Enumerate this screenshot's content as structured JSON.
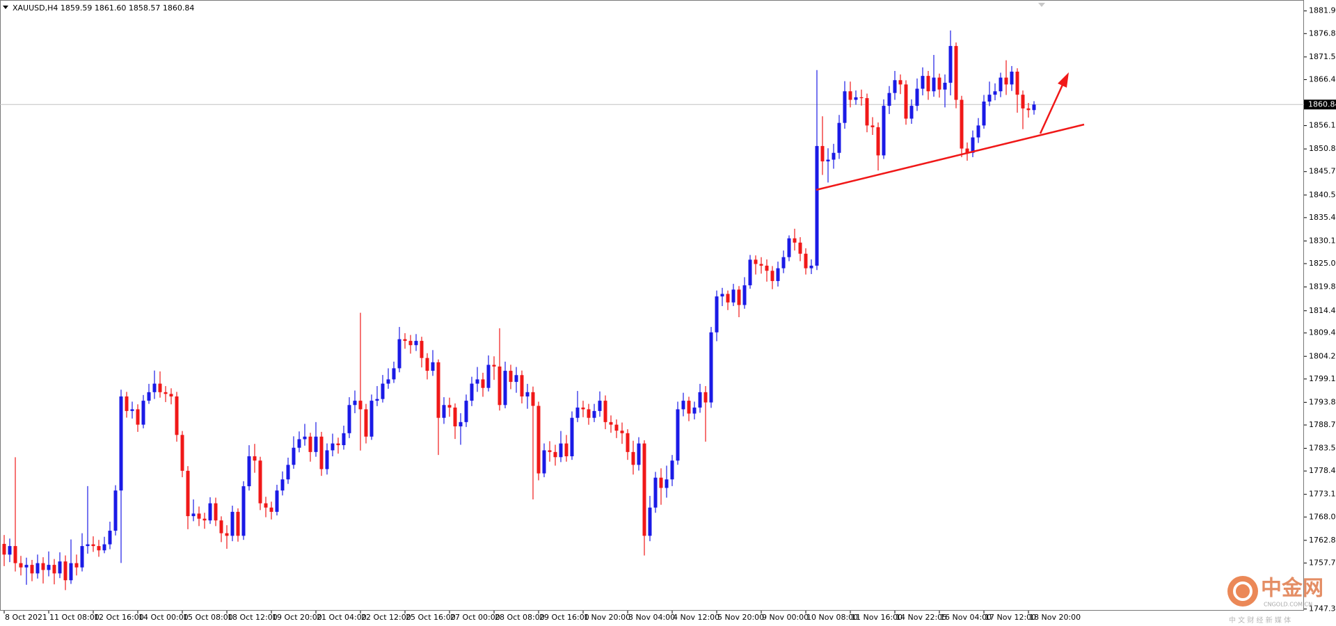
{
  "chart_data": {
    "type": "candlestick",
    "title": "XAUUSD,H4  1859.59 1861.60 1858.57 1860.84",
    "categories": [
      "8 Oct 2021",
      null,
      null,
      null,
      null,
      null,
      null,
      null,
      "11 Oct 08:00",
      null,
      null,
      null,
      null,
      null,
      null,
      null,
      "12 Oct 16:00",
      null,
      null,
      null,
      null,
      null,
      null,
      null,
      "14 Oct 00:00",
      null,
      null,
      null,
      null,
      null,
      null,
      null,
      "15 Oct 08:00",
      null,
      null,
      null,
      null,
      null,
      null,
      null,
      "18 Oct 12:00",
      null,
      null,
      null,
      null,
      null,
      null,
      null,
      "19 Oct 20:00",
      null,
      null,
      null,
      null,
      null,
      null,
      null,
      "21 Oct 04:00",
      null,
      null,
      null,
      null,
      null,
      null,
      null,
      "22 Oct 12:00",
      null,
      null,
      null,
      null,
      null,
      null,
      null,
      "25 Oct 16:00",
      null,
      null,
      null,
      null,
      null,
      null,
      null,
      "27 Oct 00:00",
      null,
      null,
      null,
      null,
      null,
      null,
      null,
      "28 Oct 08:00",
      null,
      null,
      null,
      null,
      null,
      null,
      null,
      "29 Oct 16:00",
      null,
      null,
      null,
      null,
      null,
      null,
      null,
      "1 Nov 20:00",
      null,
      null,
      null,
      null,
      null,
      null,
      null,
      "3 Nov 04:00",
      null,
      null,
      null,
      null,
      null,
      null,
      null,
      "4 Nov 12:00",
      null,
      null,
      null,
      null,
      null,
      null,
      null,
      "5 Nov 20:00",
      null,
      null,
      null,
      null,
      null,
      null,
      null,
      "9 Nov 00:00",
      null,
      null,
      null,
      null,
      null,
      null,
      null,
      "10 Nov 08:00",
      null,
      null,
      null,
      null,
      null,
      null,
      null,
      "11 Nov 16:00",
      null,
      null,
      null,
      null,
      null,
      null,
      null,
      "14 Nov 22:05",
      null,
      null,
      null,
      null,
      null,
      null,
      null,
      "16 Nov 04:00",
      null,
      null,
      null,
      null,
      null,
      null,
      null,
      "17 Nov 12:00",
      null,
      null,
      null,
      null,
      null,
      null,
      null,
      "18 Nov 20:00",
      null
    ],
    "open": [
      1762.0,
      1759.59,
      1761.51,
      1757.67,
      1756.71,
      1757.28,
      1755.36,
      1757.67,
      1756.13,
      1757.28,
      1755.36,
      1758.05,
      1753.82,
      1757.67,
      1756.71,
      1761.51,
      1761.9,
      1761.51,
      1760.55,
      1761.9,
      1764.97,
      1774.01,
      1795.17,
      1791.9,
      1792.28,
      1788.82,
      1794.21,
      1796.13,
      1798.05,
      1796.13,
      1795.74,
      1795.17,
      1786.51,
      1778.44,
      1768.24,
      1768.82,
      1767.67,
      1767.28,
      1771.13,
      1767.28,
      1764.4,
      1763.82,
      1769.21,
      1763.82,
      1774.97,
      1781.71,
      1780.74,
      1771.13,
      1770.17,
      1769.21,
      1774.01,
      1776.51,
      1779.78,
      1783.63,
      1785.55,
      1786.13,
      1782.67,
      1786.13,
      1778.82,
      1783.05,
      1784.59,
      1784.21,
      1786.9,
      1793.24,
      1794.21,
      1792.28,
      1786.13,
      1794.21,
      1794.59,
      1798.05,
      1799.01,
      1801.51,
      1808.05,
      1807.67,
      1806.71,
      1807.67,
      1803.82,
      1800.94,
      1802.86,
      1790.36,
      1793.24,
      1792.67,
      1788.44,
      1789.4,
      1794.21,
      1798.05,
      1799.01,
      1797.09,
      1802.28,
      1801.9,
      1793.24,
      1800.94,
      1798.44,
      1799.97,
      1795.17,
      1796.13,
      1793.05,
      1777.86,
      1783.05,
      1782.67,
      1781.51,
      1784.59,
      1781.71,
      1790.36,
      1792.67,
      1792.28,
      1790.36,
      1791.9,
      1794.21,
      1789.4,
      1788.82,
      1787.47,
      1786.9,
      1782.67,
      1779.78,
      1784.59,
      1763.82,
      1770.17,
      1776.9,
      1774.59,
      1776.51,
      1780.74,
      1792.28,
      1794.21,
      1791.32,
      1792.67,
      1796.13,
      1793.82,
      1809.59,
      1817.67,
      1818.24,
      1816.32,
      1819.21,
      1815.74,
      1820.17,
      1825.94,
      1824.97,
      1824.59,
      1823.44,
      1821.13,
      1824.01,
      1826.51,
      1830.74,
      1829.78,
      1827.28,
      1824.01,
      1824.59,
      1851.51,
      1848.05,
      1848.44,
      1849.97,
      1856.71,
      1863.82,
      1861.9,
      1862.47,
      1862.28,
      1856.13,
      1855.74,
      1849.4,
      1860.55,
      1863.44,
      1866.32,
      1865.36,
      1857.67,
      1860.55,
      1864.4,
      1867.28,
      1863.82,
      1866.9,
      1864.21,
      1865.74,
      1874.01,
      1861.9,
      1850.94,
      1849.97,
      1853.44,
      1856.13,
      1861.51,
      1863.05,
      1863.82,
      1866.9,
      1865.36,
      1868.24,
      1863.05,
      1859.97,
      1859.59
    ],
    "high": [
      1764.0,
      1763.2,
      1781.5,
      1759.3,
      1758.9,
      1758.4,
      1759.6,
      1759.0,
      1760.3,
      1758.6,
      1760.1,
      1759.4,
      1763.0,
      1759.6,
      1764.4,
      1775.0,
      1763.7,
      1762.9,
      1763.6,
      1767.0,
      1775.2,
      1796.7,
      1796.2,
      1794.0,
      1793.4,
      1795.5,
      1798.0,
      1801.0,
      1800.8,
      1797.5,
      1797.0,
      1796.2,
      1787.4,
      1779.5,
      1772.0,
      1770.4,
      1769.0,
      1772.5,
      1772.4,
      1768.2,
      1766.2,
      1770.6,
      1770.0,
      1776.1,
      1784.2,
      1784.5,
      1781.6,
      1772.6,
      1771.5,
      1775.3,
      1778.3,
      1781.4,
      1786.2,
      1787.3,
      1789.0,
      1787.0,
      1789.4,
      1787.2,
      1784.6,
      1786.8,
      1785.9,
      1788.6,
      1795.0,
      1796.5,
      1814.0,
      1793.5,
      1795.6,
      1797.5,
      1800.0,
      1801.5,
      1803.0,
      1810.8,
      1809.4,
      1809.0,
      1809.2,
      1808.6,
      1804.9,
      1805.6,
      1803.5,
      1795.0,
      1794.9,
      1793.6,
      1791.4,
      1795.6,
      1799.6,
      1801.8,
      1800.5,
      1804.4,
      1804.2,
      1810.5,
      1803.0,
      1802.3,
      1801.8,
      1801.0,
      1798.0,
      1797.4,
      1794.0,
      1784.6,
      1785.1,
      1784.3,
      1787.4,
      1786.5,
      1791.8,
      1796.4,
      1794.2,
      1793.5,
      1793.5,
      1796.3,
      1795.4,
      1790.9,
      1790.0,
      1789.3,
      1787.8,
      1785.2,
      1786.0,
      1785.3,
      1772.8,
      1778.2,
      1779.0,
      1779.6,
      1782.0,
      1794.0,
      1796.0,
      1795.1,
      1794.0,
      1798.0,
      1797.5,
      1810.8,
      1819.0,
      1819.6,
      1819.0,
      1820.5,
      1820.0,
      1822.0,
      1827.0,
      1826.9,
      1826.5,
      1826.0,
      1824.5,
      1825.5,
      1828.0,
      1831.4,
      1832.9,
      1831.0,
      1828.5,
      1826.0,
      1868.6,
      1858.2,
      1851.0,
      1852.0,
      1858.5,
      1866.1,
      1866.0,
      1864.0,
      1864.2,
      1863.3,
      1858.0,
      1856.8,
      1862.0,
      1865.0,
      1868.4,
      1867.6,
      1866.3,
      1862.0,
      1866.7,
      1869.2,
      1868.4,
      1872.0,
      1867.8,
      1867.6,
      1877.5,
      1874.8,
      1862.8,
      1852.3,
      1855.0,
      1857.8,
      1863.0,
      1866.0,
      1865.6,
      1868.0,
      1870.8,
      1869.5,
      1869.0,
      1864.0,
      1861.2,
      1861.6
    ],
    "low": [
      1757.0,
      1757.9,
      1755.8,
      1754.9,
      1752.8,
      1753.6,
      1754.2,
      1753.1,
      1754.7,
      1752.9,
      1754.3,
      1751.6,
      1753.0,
      1754.9,
      1755.8,
      1759.8,
      1760.2,
      1759.1,
      1759.9,
      1760.8,
      1763.9,
      1757.7,
      1790.4,
      1790.2,
      1787.2,
      1788.0,
      1793.5,
      1794.6,
      1794.9,
      1793.9,
      1793.4,
      1785.0,
      1777.0,
      1765.3,
      1767.1,
      1766.0,
      1765.4,
      1766.5,
      1766.0,
      1762.4,
      1760.9,
      1762.6,
      1762.5,
      1762.9,
      1774.0,
      1778.0,
      1769.6,
      1768.0,
      1767.5,
      1768.4,
      1772.9,
      1775.5,
      1778.9,
      1782.6,
      1784.1,
      1780.5,
      1781.6,
      1777.3,
      1777.6,
      1781.7,
      1782.3,
      1783.2,
      1785.8,
      1791.4,
      1783.0,
      1784.6,
      1785.4,
      1793.0,
      1793.8,
      1796.9,
      1798.2,
      1800.6,
      1805.9,
      1804.8,
      1805.4,
      1801.7,
      1799.0,
      1799.8,
      1782.0,
      1789.0,
      1790.6,
      1785.6,
      1784.3,
      1788.3,
      1793.0,
      1796.2,
      1795.1,
      1796.3,
      1798.9,
      1792.0,
      1792.5,
      1796.8,
      1796.0,
      1793.6,
      1792.4,
      1772.0,
      1776.3,
      1777.0,
      1780.5,
      1779.6,
      1780.4,
      1780.5,
      1780.9,
      1789.4,
      1790.5,
      1788.8,
      1789.4,
      1790.6,
      1787.8,
      1787.0,
      1785.8,
      1784.5,
      1780.9,
      1777.6,
      1778.5,
      1759.4,
      1762.6,
      1769.0,
      1770.8,
      1772.4,
      1775.0,
      1779.8,
      1790.7,
      1789.6,
      1790.0,
      1791.5,
      1785.0,
      1792.6,
      1807.6,
      1815.5,
      1814.6,
      1815.5,
      1813.0,
      1814.9,
      1819.4,
      1822.6,
      1822.8,
      1821.0,
      1819.3,
      1819.9,
      1822.9,
      1825.6,
      1828.0,
      1825.6,
      1822.6,
      1822.7,
      1823.6,
      1845.0,
      1843.3,
      1846.4,
      1848.6,
      1855.4,
      1860.2,
      1860.8,
      1860.6,
      1854.6,
      1854.0,
      1846.0,
      1848.6,
      1858.7,
      1861.9,
      1863.2,
      1856.3,
      1856.5,
      1859.4,
      1862.9,
      1861.9,
      1862.6,
      1862.4,
      1860.2,
      1862.9,
      1860.0,
      1849.0,
      1848.2,
      1849.0,
      1852.2,
      1855.4,
      1860.5,
      1861.8,
      1862.5,
      1863.0,
      1863.9,
      1859.0,
      1855.3,
      1857.9,
      1858.57
    ],
    "close": [
      1759.59,
      1761.51,
      1757.67,
      1756.71,
      1757.28,
      1755.36,
      1757.67,
      1756.13,
      1757.28,
      1755.36,
      1758.05,
      1753.82,
      1757.67,
      1756.71,
      1761.51,
      1761.9,
      1761.51,
      1760.55,
      1761.9,
      1764.97,
      1774.01,
      1795.17,
      1791.9,
      1792.28,
      1788.82,
      1794.21,
      1796.13,
      1798.05,
      1796.13,
      1795.74,
      1795.17,
      1786.51,
      1778.44,
      1768.24,
      1768.82,
      1767.67,
      1767.28,
      1771.13,
      1767.28,
      1764.4,
      1763.82,
      1769.21,
      1763.82,
      1774.97,
      1781.71,
      1780.74,
      1771.13,
      1770.17,
      1769.21,
      1774.01,
      1776.51,
      1779.78,
      1783.63,
      1785.55,
      1786.13,
      1782.67,
      1786.13,
      1778.82,
      1783.05,
      1784.59,
      1784.21,
      1786.9,
      1793.24,
      1794.21,
      1792.28,
      1786.13,
      1794.21,
      1794.59,
      1798.05,
      1799.01,
      1801.51,
      1808.05,
      1807.67,
      1806.71,
      1807.67,
      1803.82,
      1800.94,
      1802.86,
      1790.36,
      1793.24,
      1792.67,
      1788.44,
      1789.4,
      1794.21,
      1798.05,
      1799.01,
      1797.09,
      1802.28,
      1801.9,
      1793.24,
      1800.94,
      1798.44,
      1799.97,
      1795.17,
      1796.13,
      1793.05,
      1777.86,
      1783.05,
      1782.67,
      1781.51,
      1784.59,
      1781.71,
      1790.36,
      1792.67,
      1792.28,
      1790.36,
      1791.9,
      1794.21,
      1789.4,
      1788.82,
      1787.47,
      1786.9,
      1782.67,
      1779.78,
      1784.59,
      1763.82,
      1770.17,
      1776.9,
      1774.59,
      1776.51,
      1780.74,
      1792.28,
      1794.21,
      1791.32,
      1792.67,
      1796.13,
      1793.82,
      1809.59,
      1817.67,
      1818.24,
      1816.32,
      1819.21,
      1815.74,
      1820.17,
      1825.94,
      1824.97,
      1824.59,
      1823.44,
      1821.13,
      1824.01,
      1826.51,
      1830.74,
      1829.78,
      1827.28,
      1824.01,
      1824.59,
      1851.51,
      1848.05,
      1848.44,
      1849.97,
      1856.71,
      1863.82,
      1861.9,
      1862.47,
      1862.28,
      1856.13,
      1855.74,
      1849.4,
      1860.55,
      1863.44,
      1866.32,
      1865.36,
      1857.67,
      1860.55,
      1864.4,
      1867.28,
      1863.82,
      1866.9,
      1864.21,
      1865.74,
      1874.01,
      1861.9,
      1850.94,
      1849.97,
      1853.44,
      1856.13,
      1861.51,
      1863.05,
      1863.82,
      1866.9,
      1865.36,
      1868.24,
      1863.05,
      1859.97,
      1859.59,
      1860.84
    ],
    "ylim": [
      1746.97,
      1884.2
    ],
    "yticks": [
      {
        "value": 1881.9,
        "label": "1881.90"
      },
      {
        "value": 1876.8,
        "label": "1876.80"
      },
      1871.55,
      1866.45,
      {
        "value": 1856.1,
        "label": "1856.10"
      },
      1850.85,
      1845.75,
      {
        "value": 1840.5,
        "label": "1840.50"
      },
      {
        "value": 1835.4,
        "label": "1835.40"
      },
      1830.15,
      1825.05,
      {
        "value": 1819.8,
        "label": "1819.80"
      },
      1814.45,
      1809.45,
      {
        "value": 1804.2,
        "label": "1804.20"
      },
      {
        "value": 1799.1,
        "label": "1799.10"
      },
      1793.85,
      1788.75,
      {
        "value": 1783.5,
        "label": "1783.50"
      },
      {
        "value": 1778.4,
        "label": "1778.40"
      },
      1773.15,
      1768.05,
      {
        "value": 1762.8,
        "label": "1762.80"
      },
      {
        "value": 1757.7,
        "label": "1757.70"
      },
      1747.35
    ],
    "current_price": 1860.84,
    "up_color": "#1a1ae6",
    "down_color": "#f01818",
    "grid": false
  },
  "watermark": {
    "brand": "中金网",
    "domain": "CNGOLD.COM.CN",
    "slogan": "中 文 财 经 新 媒 体"
  }
}
